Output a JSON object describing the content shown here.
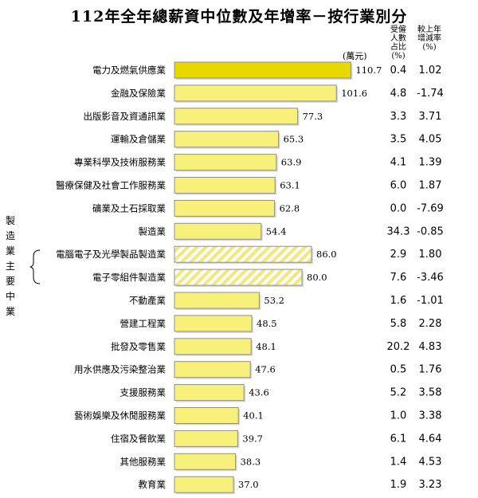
{
  "title": "112年全年總薪資中位數及年增率－按行業別分",
  "headers": {
    "share": "受僱人數占比(%)",
    "rate": "較上年增減率(%)",
    "unit": "(萬元)"
  },
  "side_label": "製造業主要中業",
  "chart_data": {
    "type": "bar",
    "orientation": "horizontal",
    "unit": "萬元",
    "categories": [
      "電力及燃氣供應業",
      "金融及保險業",
      "出版影音及資通訊業",
      "運輸及倉儲業",
      "專業科學及技術服務業",
      "醫療保健及社會工作服務業",
      "礦業及土石採取業",
      "製造業",
      "電腦電子及光學製品製造業",
      "電子零組件製造業",
      "不動產業",
      "營建工程業",
      "批發及零售業",
      "用水供應及污染整治業",
      "支援服務業",
      "藝術娛樂及休閒服務業",
      "住宿及餐飲業",
      "其他服務業",
      "教育業"
    ],
    "values": [
      110.7,
      101.6,
      77.3,
      65.3,
      63.9,
      63.1,
      62.8,
      54.4,
      86.0,
      80.0,
      53.2,
      48.5,
      48.1,
      47.6,
      43.6,
      40.1,
      39.7,
      38.3,
      37.0
    ],
    "value_labels": [
      "110.7",
      "101.6",
      "77.3",
      "65.3",
      "63.9",
      "63.1",
      "62.8",
      "54.4",
      "86.0",
      "80.0",
      "53.2",
      "48.5",
      "48.1",
      "47.6",
      "43.6",
      "40.1",
      "39.7",
      "38.3",
      "37.0"
    ],
    "employment_share": [
      "0.4",
      "4.8",
      "3.3",
      "3.5",
      "4.1",
      "6.0",
      "0.0",
      "34.3",
      "2.9",
      "7.6",
      "1.6",
      "5.8",
      "20.2",
      "0.5",
      "5.2",
      "1.0",
      "6.1",
      "1.4",
      "1.9"
    ],
    "annual_change": [
      "1.02",
      "-1.74",
      "3.71",
      "4.05",
      "1.39",
      "1.87",
      "-7.69",
      "-0.85",
      "1.80",
      "-3.46",
      "-1.01",
      "2.28",
      "4.83",
      "1.76",
      "3.58",
      "3.38",
      "4.64",
      "4.53",
      "3.23"
    ],
    "highlight_index": 0,
    "sub_industry_indices": [
      8,
      9
    ],
    "colors": {
      "bar": "#f7f07a",
      "highlight": "#e8d800",
      "stroke": "#8f8f8f",
      "hatch_a": "#f3e97a",
      "hatch_b": "#ffffff"
    }
  }
}
